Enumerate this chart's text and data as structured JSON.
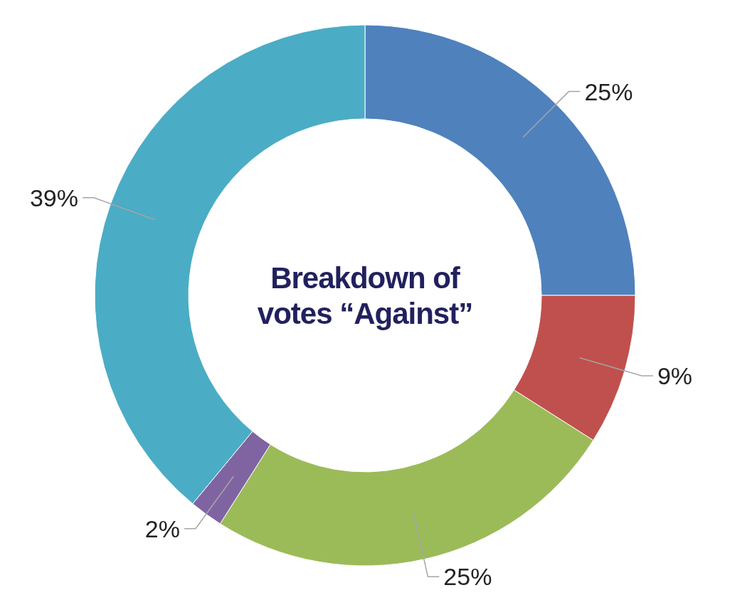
{
  "chart_data": {
    "type": "donut",
    "title": "Breakdown of votes “Against”",
    "categories": [
      null,
      null,
      null,
      null,
      null
    ],
    "values": [
      25,
      9,
      25,
      2,
      39
    ],
    "value_labels": [
      "25%",
      "9%",
      "25%",
      "2%",
      "39%"
    ],
    "colors": [
      "#4f81bd",
      "#c0504d",
      "#9bbb59",
      "#8064a2",
      "#4bacc6"
    ]
  }
}
